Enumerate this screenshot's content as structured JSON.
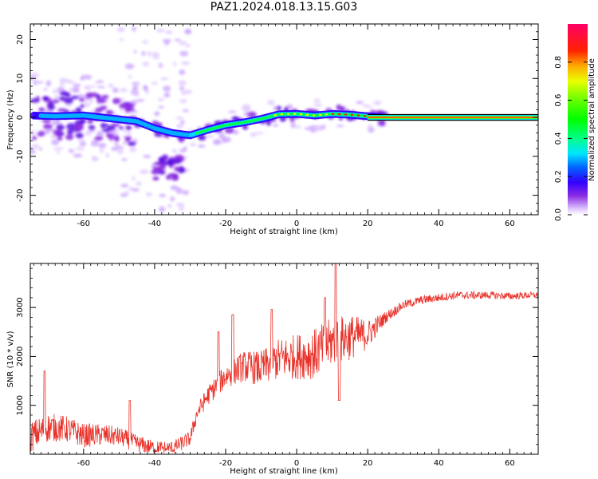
{
  "figure": {
    "title": "PAZ1.2024.018.13.15.G03"
  },
  "chart_data": [
    {
      "type": "heatmap",
      "title": "PAZ1.2024.018.13.15.G03",
      "xlabel": "Height of straight line (km)",
      "ylabel": "Frequency (Hz)",
      "xlim": [
        -75,
        68
      ],
      "ylim": [
        -25,
        24
      ],
      "xticks": [
        -60,
        -40,
        -20,
        0,
        20,
        40,
        60
      ],
      "yticks": [
        -20,
        -10,
        0,
        10,
        20
      ],
      "colorbar": {
        "label": "Normalized spectral amplitude",
        "range": [
          0,
          1
        ],
        "ticks": [
          0.0,
          0.2,
          0.4,
          0.6,
          0.8
        ],
        "colormap": "gist_ncar-like",
        "colors": [
          "#ffffff",
          "#e0c8ff",
          "#8a2be2",
          "#3300ff",
          "#00e5ff",
          "#00ff44",
          "#eaff00",
          "#ff2200",
          "#ff0066"
        ]
      },
      "ridge": {
        "description_points_km_hz": [
          [
            -75,
            0.5
          ],
          [
            -68,
            0.3
          ],
          [
            -60,
            0.5
          ],
          [
            -55,
            0.0
          ],
          [
            -50,
            -0.5
          ],
          [
            -45,
            -1.0
          ],
          [
            -40,
            -2.8
          ],
          [
            -35,
            -4.0
          ],
          [
            -30,
            -4.6
          ],
          [
            -25,
            -3.2
          ],
          [
            -20,
            -2.0
          ],
          [
            -15,
            -1.3
          ],
          [
            -10,
            -0.4
          ],
          [
            -5,
            0.8
          ],
          [
            0,
            0.9
          ],
          [
            5,
            0.5
          ],
          [
            10,
            0.9
          ],
          [
            15,
            0.7
          ],
          [
            20,
            0.3
          ],
          [
            25,
            0.0
          ],
          [
            68,
            0.0
          ]
        ]
      },
      "grid": false
    },
    {
      "type": "line",
      "xlabel": "Height of straight line (km)",
      "ylabel": "SNR (10 * v/v)",
      "xlim": [
        -75,
        68
      ],
      "ylim": [
        0,
        3900
      ],
      "xticks": [
        -60,
        -40,
        -20,
        0,
        20,
        40,
        60
      ],
      "yticks": [
        1000,
        2000,
        3000
      ],
      "color": "#e8322a",
      "grid": false,
      "envelope": {
        "x": [
          -75,
          -70,
          -65,
          -60,
          -55,
          -50,
          -45,
          -40,
          -35,
          -30,
          -28,
          -25,
          -20,
          -15,
          -10,
          -5,
          0,
          5,
          10,
          15,
          20,
          25,
          30,
          35,
          40,
          45,
          50,
          55,
          60,
          65,
          68
        ],
        "y": [
          350,
          550,
          520,
          380,
          400,
          360,
          220,
          130,
          120,
          320,
          850,
          1200,
          1600,
          1800,
          1750,
          1950,
          2000,
          2050,
          2300,
          2400,
          2450,
          2800,
          3050,
          3150,
          3200,
          3250,
          3250,
          3250,
          3230,
          3250,
          3250
        ]
      },
      "noise": {
        "x": [
          -75,
          -40,
          -30,
          -5,
          5,
          15,
          20,
          25,
          30,
          68
        ],
        "amplitude": [
          320,
          150,
          150,
          420,
          520,
          480,
          300,
          120,
          90,
          70
        ]
      },
      "peaks": [
        [
          -71,
          1700
        ],
        [
          -47,
          1100
        ],
        [
          -22,
          2500
        ],
        [
          -18,
          2850
        ],
        [
          -7,
          2960
        ],
        [
          8,
          3200
        ],
        [
          11,
          3900
        ],
        [
          12,
          1100
        ]
      ]
    }
  ]
}
